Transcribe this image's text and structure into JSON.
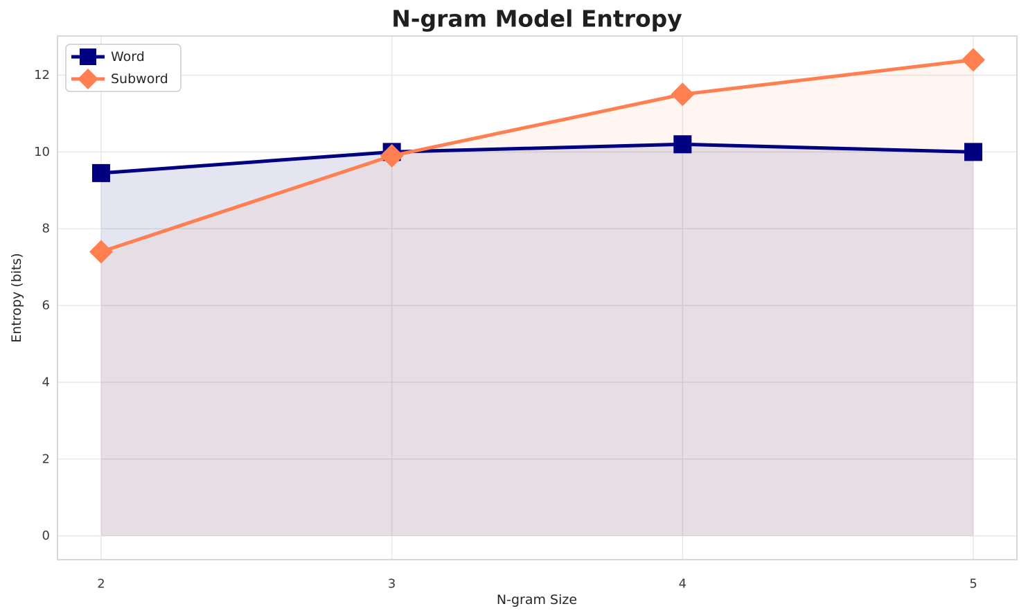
{
  "chart_data": {
    "type": "line",
    "title": "N-gram Model Entropy",
    "xlabel": "N-gram Size",
    "ylabel": "Entropy (bits)",
    "x": [
      2,
      3,
      4,
      5
    ],
    "series": [
      {
        "name": "Word",
        "values": [
          9.45,
          10.0,
          10.2,
          10.0
        ],
        "color": "#000080",
        "marker": "square",
        "fill_to_zero": true,
        "fill_alpha": 0.1
      },
      {
        "name": "Subword",
        "values": [
          7.4,
          9.9,
          11.5,
          12.4
        ],
        "color": "#FF7F50",
        "marker": "diamond",
        "fill_to_zero": true,
        "fill_alpha": 0.08
      }
    ],
    "xtick_values": [
      2,
      3,
      4,
      5
    ],
    "xtick_labels": [
      "2",
      "3",
      "4",
      "5"
    ],
    "ytick_values": [
      0,
      2,
      4,
      6,
      8,
      10,
      12
    ],
    "ytick_labels": [
      "0",
      "2",
      "4",
      "6",
      "8",
      "10",
      "12"
    ],
    "xlim": [
      1.85,
      5.15
    ],
    "ylim": [
      -0.62,
      13.02
    ],
    "grid": true,
    "legend": {
      "position": "upper-left",
      "entries": [
        "Word",
        "Subword"
      ]
    },
    "theme": {
      "background": "#ffffff",
      "grid_color": "#e8e8e8",
      "spine_color": "#d4d4d4",
      "title_color": "#1f1f1f",
      "label_color": "#262626",
      "tick_color": "#3b3b3b",
      "legend_border": "#cccccc",
      "legend_background": "#ffffff"
    }
  }
}
